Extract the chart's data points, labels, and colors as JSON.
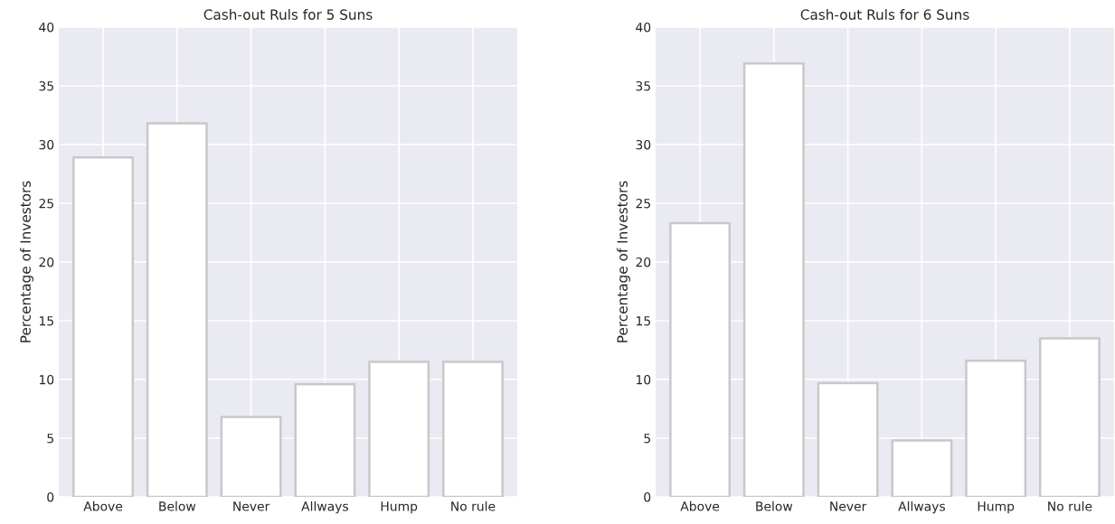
{
  "chart_data": [
    {
      "type": "bar",
      "title": "Cash-out Ruls for 5 Suns",
      "ylabel": "Percentage of Investors",
      "categories": [
        "Above",
        "Below",
        "Never",
        "Allways",
        "Hump",
        "No rule"
      ],
      "series": [
        {
          "color": "#ffffff",
          "values": [
            28.9,
            31.8,
            6.8,
            9.6,
            11.5,
            11.5
          ]
        }
      ],
      "ylim": [
        0,
        40
      ],
      "yticks": [
        0,
        5,
        10,
        15,
        20,
        25,
        30,
        35,
        40
      ],
      "grid": true
    },
    {
      "type": "bar",
      "title": "Cash-out Ruls for 6 Suns",
      "ylabel": "Percentage of Investors",
      "categories": [
        "Above",
        "Below",
        "Never",
        "Allways",
        "Hump",
        "No rule"
      ],
      "series": [
        {
          "color": "#ffffff",
          "values": [
            23.3,
            36.9,
            9.7,
            4.8,
            11.6,
            13.5
          ]
        }
      ],
      "ylim": [
        0,
        40
      ],
      "yticks": [
        0,
        5,
        10,
        15,
        20,
        25,
        30,
        35,
        40
      ],
      "grid": true
    }
  ]
}
